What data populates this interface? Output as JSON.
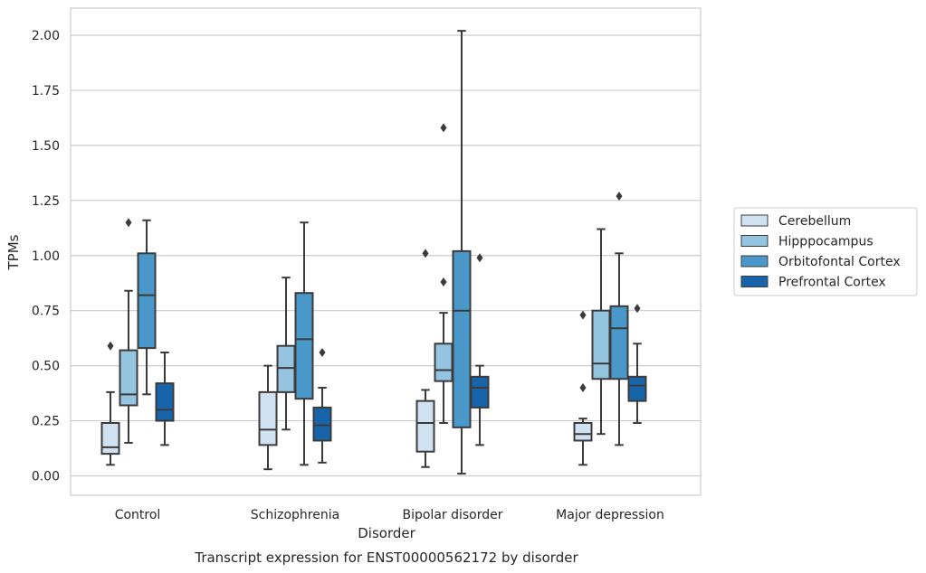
{
  "chart_data": {
    "type": "box",
    "xlabel": "Disorder",
    "ylabel": "TPMs",
    "caption": "Transcript expression for ENST00000562172 by disorder",
    "ylim": [
      -0.09,
      2.12
    ],
    "yticks": [
      "0.00",
      "0.25",
      "0.50",
      "0.75",
      "1.00",
      "1.25",
      "1.50",
      "1.75",
      "2.00"
    ],
    "grid": true,
    "legend_position": "right",
    "categories": [
      "Control",
      "Schizophrenia",
      "Bipolar disorder",
      "Major depression"
    ],
    "series": [
      {
        "name": "Cerebellum",
        "color": "#d0e1f2",
        "boxes": [
          {
            "whislo": 0.05,
            "q1": 0.1,
            "med": 0.13,
            "q3": 0.24,
            "whishi": 0.38,
            "fliers": [
              0.59
            ]
          },
          {
            "whislo": 0.03,
            "q1": 0.14,
            "med": 0.21,
            "q3": 0.38,
            "whishi": 0.5,
            "fliers": []
          },
          {
            "whislo": 0.04,
            "q1": 0.11,
            "med": 0.24,
            "q3": 0.34,
            "whishi": 0.39,
            "fliers": [
              1.01
            ]
          },
          {
            "whislo": 0.05,
            "q1": 0.16,
            "med": 0.19,
            "q3": 0.24,
            "whishi": 0.26,
            "fliers": [
              0.73,
              0.4
            ]
          }
        ]
      },
      {
        "name": "Hipppocampus",
        "color": "#94c4df",
        "boxes": [
          {
            "whislo": 0.15,
            "q1": 0.32,
            "med": 0.37,
            "q3": 0.57,
            "whishi": 0.84,
            "fliers": [
              1.15
            ]
          },
          {
            "whislo": 0.21,
            "q1": 0.38,
            "med": 0.49,
            "q3": 0.59,
            "whishi": 0.9,
            "fliers": []
          },
          {
            "whislo": 0.24,
            "q1": 0.43,
            "med": 0.48,
            "q3": 0.6,
            "whishi": 0.74,
            "fliers": [
              1.58,
              0.88
            ]
          },
          {
            "whislo": 0.19,
            "q1": 0.44,
            "med": 0.51,
            "q3": 0.75,
            "whishi": 1.12,
            "fliers": []
          }
        ]
      },
      {
        "name": "Orbitofontal Cortex",
        "color": "#4a98c9",
        "boxes": [
          {
            "whislo": 0.37,
            "q1": 0.58,
            "med": 0.82,
            "q3": 1.01,
            "whishi": 1.16,
            "fliers": []
          },
          {
            "whislo": 0.05,
            "q1": 0.35,
            "med": 0.62,
            "q3": 0.83,
            "whishi": 1.15,
            "fliers": []
          },
          {
            "whislo": 0.01,
            "q1": 0.22,
            "med": 0.75,
            "q3": 1.02,
            "whishi": 2.02,
            "fliers": []
          },
          {
            "whislo": 0.14,
            "q1": 0.44,
            "med": 0.67,
            "q3": 0.77,
            "whishi": 1.01,
            "fliers": [
              1.27
            ]
          }
        ]
      },
      {
        "name": "Prefrontal Cortex",
        "color": "#1764ab",
        "boxes": [
          {
            "whislo": 0.14,
            "q1": 0.25,
            "med": 0.3,
            "q3": 0.42,
            "whishi": 0.56,
            "fliers": []
          },
          {
            "whislo": 0.06,
            "q1": 0.16,
            "med": 0.23,
            "q3": 0.31,
            "whishi": 0.4,
            "fliers": [
              0.56
            ]
          },
          {
            "whislo": 0.14,
            "q1": 0.31,
            "med": 0.4,
            "q3": 0.45,
            "whishi": 0.5,
            "fliers": [
              0.99
            ]
          },
          {
            "whislo": 0.24,
            "q1": 0.34,
            "med": 0.41,
            "q3": 0.45,
            "whishi": 0.6,
            "fliers": [
              0.76
            ]
          }
        ]
      }
    ]
  }
}
